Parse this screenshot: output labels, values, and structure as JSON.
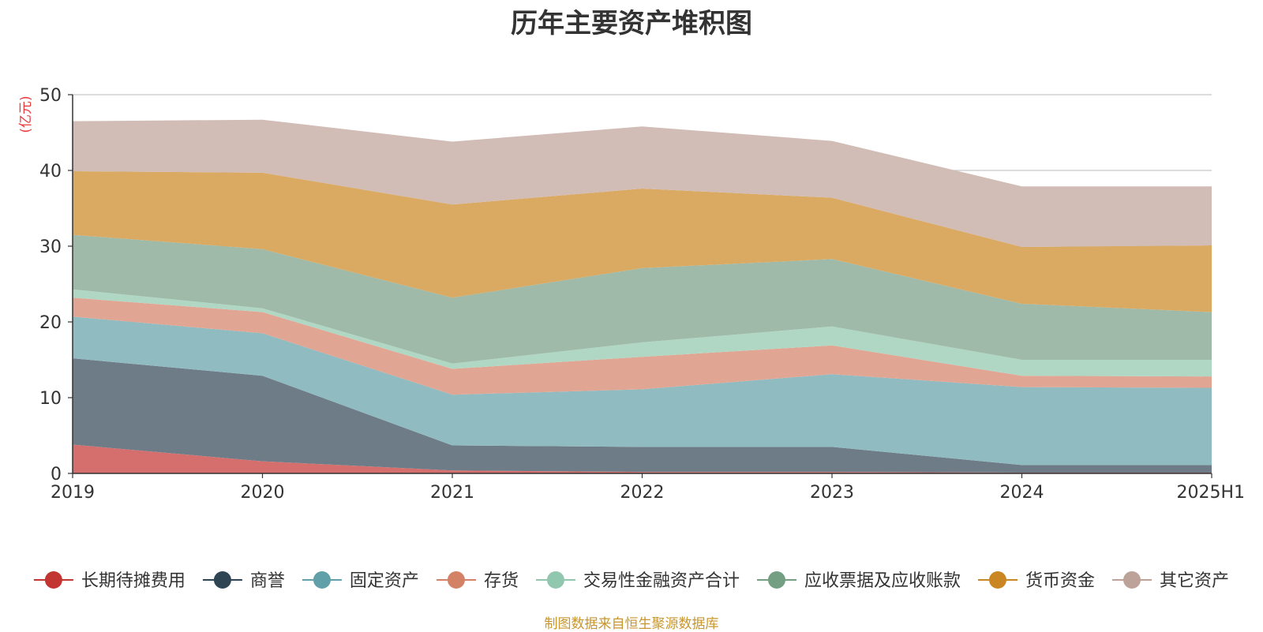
{
  "chart_data": {
    "type": "area",
    "stacked": true,
    "title": "历年主要资产堆积图",
    "ylabel": "(亿元)",
    "ylabel_color": "#e83a3a",
    "xlabel": "",
    "ylim": [
      0,
      50
    ],
    "yticks": [
      0,
      10,
      20,
      30,
      40,
      50
    ],
    "grid": true,
    "legend_position": "bottom",
    "categories": [
      "2019",
      "2020",
      "2021",
      "2022",
      "2023",
      "2024",
      "2025H1"
    ],
    "series": [
      {
        "name": "长期待摊费用",
        "color": "#c23531",
        "fill": "#d46f6e",
        "values": [
          3.8,
          1.6,
          0.4,
          0.2,
          0.2,
          0.1,
          0.1
        ]
      },
      {
        "name": "商誉",
        "color": "#2f4554",
        "fill": "#6e7c87",
        "values": [
          11.4,
          11.3,
          3.3,
          3.3,
          3.3,
          1.0,
          1.0
        ]
      },
      {
        "name": "固定资产",
        "color": "#61a0a8",
        "fill": "#90bbc1",
        "values": [
          5.5,
          5.6,
          6.7,
          7.6,
          9.6,
          10.3,
          10.2
        ]
      },
      {
        "name": "存货",
        "color": "#d48265",
        "fill": "#e1a693",
        "values": [
          2.5,
          2.8,
          3.4,
          4.3,
          3.8,
          1.5,
          1.5
        ]
      },
      {
        "name": "交易性金融资产合计",
        "color": "#91c7ae",
        "fill": "#b0d7c4",
        "values": [
          1.1,
          0.5,
          0.7,
          1.9,
          2.5,
          2.1,
          2.2
        ]
      },
      {
        "name": "应收票据及应收账款",
        "color": "#749f83",
        "fill": "#9fbaa8",
        "values": [
          7.2,
          7.8,
          8.7,
          9.8,
          8.9,
          7.4,
          6.3
        ]
      },
      {
        "name": "货币资金",
        "color": "#ca8622",
        "fill": "#daa962",
        "values": [
          8.4,
          10.1,
          12.3,
          10.5,
          8.1,
          7.5,
          8.8
        ]
      },
      {
        "name": "其它资产",
        "color": "#bda29a",
        "fill": "#d1bcb6",
        "values": [
          6.6,
          7.0,
          8.3,
          8.2,
          7.5,
          8.0,
          7.8
        ]
      }
    ]
  },
  "source_text": "制图数据来自恒生聚源数据库",
  "source_color": "#c8962e"
}
